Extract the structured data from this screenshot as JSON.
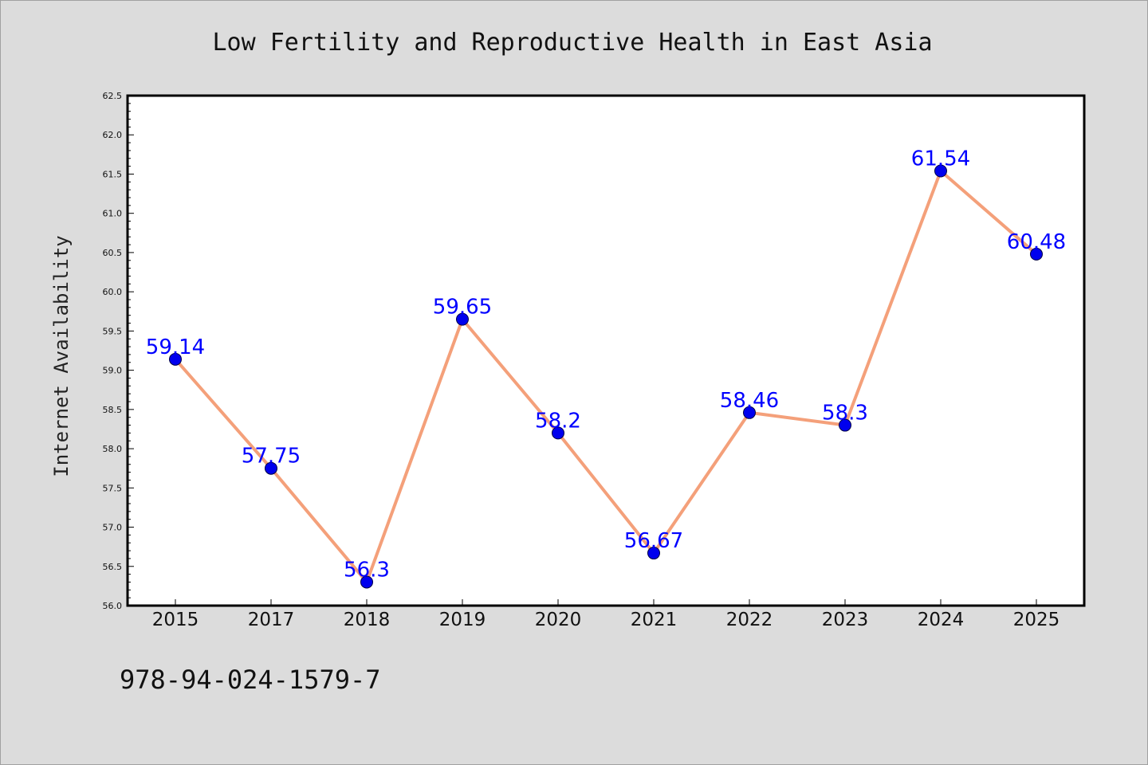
{
  "chart_data": {
    "type": "line",
    "title": "Low Fertility and Reproductive Health in East Asia",
    "ylabel": "Internet Availability",
    "xlabel": "",
    "categories": [
      "2015",
      "2017",
      "2018",
      "2019",
      "2020",
      "2021",
      "2022",
      "2023",
      "2024",
      "2025"
    ],
    "values": [
      59.14,
      57.75,
      56.3,
      59.65,
      58.2,
      56.67,
      58.46,
      58.3,
      61.54,
      60.48
    ],
    "data_labels": [
      "59.14",
      "57.75",
      "56.3",
      "59.65",
      "58.2",
      "56.67",
      "58.46",
      "58.3",
      "61.54",
      "60.48"
    ],
    "ylim": [
      56.0,
      62.5
    ],
    "yticks": [
      "56.0",
      "56.5",
      "57.0",
      "57.5",
      "58.0",
      "58.5",
      "59.0",
      "59.5",
      "60.0",
      "60.5",
      "61.0",
      "61.5",
      "62.0",
      "62.5"
    ],
    "grid": false,
    "line_color": "#f4a07a",
    "marker_color": "#0000ee",
    "label_color": "#0000ff",
    "plot_background": "#ffffff",
    "figure_background": "#dcdcdc"
  },
  "footer": {
    "isbn": "978-94-024-1579-7"
  }
}
